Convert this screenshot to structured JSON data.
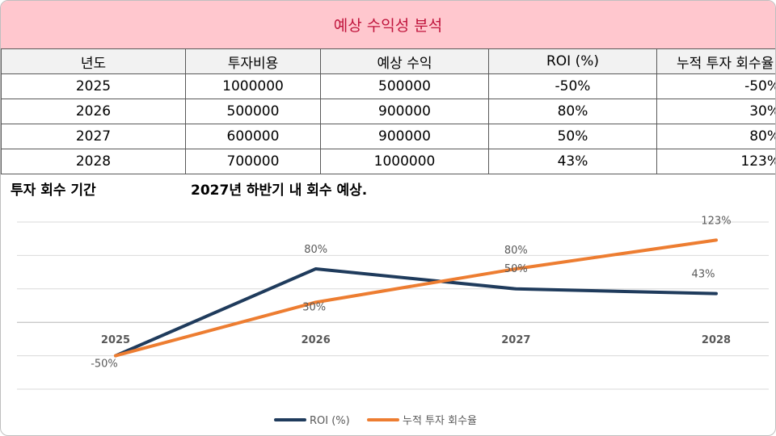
{
  "title": "예상 수익성 분석",
  "table": {
    "headers": [
      "년도",
      "투자비용",
      "예상 수익",
      "ROI (%)",
      "누적 투자 회수율"
    ],
    "rows": [
      [
        "2025",
        "1000000",
        "500000",
        "-50%",
        "-50%"
      ],
      [
        "2026",
        "500000",
        "900000",
        "80%",
        "30%"
      ],
      [
        "2027",
        "600000",
        "900000",
        "50%",
        "80%"
      ],
      [
        "2028",
        "700000",
        "1000000",
        "43%",
        "123%"
      ]
    ]
  },
  "payback": {
    "label": "투자 회수 기간",
    "value": "2027년 하반기 내 회수 예상."
  },
  "chart_data": {
    "type": "line",
    "categories": [
      "2025",
      "2026",
      "2027",
      "2028"
    ],
    "series": [
      {
        "name": "ROI (%)",
        "values": [
          -50,
          80,
          50,
          43
        ],
        "labels": [
          "-50%",
          "80%",
          "50%",
          "43%"
        ],
        "color": "#1f3b5c"
      },
      {
        "name": "누적 투자 회수율",
        "values": [
          -50,
          30,
          80,
          123
        ],
        "labels": [
          "-50%",
          "30%",
          "80%",
          "123%"
        ],
        "color": "#ed7d31"
      }
    ],
    "ylim": [
      -100,
      150
    ],
    "grid": true,
    "legend": "bottom"
  }
}
